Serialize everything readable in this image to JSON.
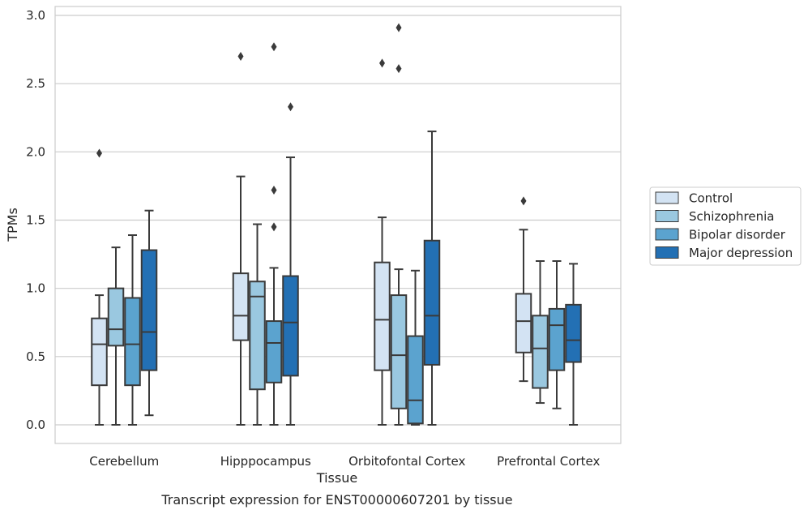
{
  "chart_data": {
    "type": "box",
    "caption": "Transcript expression for ENST00000607201 by tissue",
    "xlabel": "Tissue",
    "ylabel": "TPMs",
    "ylim": [
      -0.14,
      3.05
    ],
    "yticks": [
      "0.0",
      "0.5",
      "1.0",
      "1.5",
      "2.0",
      "2.5",
      "3.0"
    ],
    "grid": "horizontal",
    "legend_position": "right",
    "categories": [
      "Cerebellum",
      "Hipppocampus",
      "Orbitofontal Cortex",
      "Prefrontal Cortex"
    ],
    "series": [
      {
        "name": "Control",
        "color": "#d3e3f3",
        "boxes": [
          {
            "whislo": 0.0,
            "q1": 0.29,
            "med": 0.59,
            "q3": 0.78,
            "whishi": 0.95,
            "fliers": [
              1.99
            ]
          },
          {
            "whislo": 0.0,
            "q1": 0.62,
            "med": 0.8,
            "q3": 1.11,
            "whishi": 1.82,
            "fliers": [
              2.7
            ]
          },
          {
            "whislo": 0.0,
            "q1": 0.4,
            "med": 0.77,
            "q3": 1.19,
            "whishi": 1.52,
            "fliers": [
              2.65
            ]
          },
          {
            "whislo": 0.32,
            "q1": 0.53,
            "med": 0.76,
            "q3": 0.96,
            "whishi": 1.43,
            "fliers": [
              1.64
            ]
          }
        ]
      },
      {
        "name": "Schizophrenia",
        "color": "#9ac8e0",
        "boxes": [
          {
            "whislo": 0.0,
            "q1": 0.58,
            "med": 0.7,
            "q3": 1.0,
            "whishi": 1.3,
            "fliers": []
          },
          {
            "whislo": 0.0,
            "q1": 0.26,
            "med": 0.94,
            "q3": 1.05,
            "whishi": 1.47,
            "fliers": []
          },
          {
            "whislo": 0.0,
            "q1": 0.12,
            "med": 0.51,
            "q3": 0.95,
            "whishi": 1.14,
            "fliers": [
              2.91,
              2.61
            ]
          },
          {
            "whislo": 0.16,
            "q1": 0.27,
            "med": 0.56,
            "q3": 0.8,
            "whishi": 1.2,
            "fliers": []
          }
        ]
      },
      {
        "name": "Bipolar disorder",
        "color": "#5ba3cf",
        "boxes": [
          {
            "whislo": 0.0,
            "q1": 0.29,
            "med": 0.59,
            "q3": 0.93,
            "whishi": 1.39,
            "fliers": []
          },
          {
            "whislo": 0.0,
            "q1": 0.31,
            "med": 0.6,
            "q3": 0.76,
            "whishi": 1.15,
            "fliers": [
              2.77,
              1.72,
              1.45
            ]
          },
          {
            "whislo": 0.0,
            "q1": 0.01,
            "med": 0.18,
            "q3": 0.65,
            "whishi": 1.13,
            "fliers": []
          },
          {
            "whislo": 0.12,
            "q1": 0.4,
            "med": 0.73,
            "q3": 0.85,
            "whishi": 1.2,
            "fliers": []
          }
        ]
      },
      {
        "name": "Major depression",
        "color": "#2370b4",
        "boxes": [
          {
            "whislo": 0.07,
            "q1": 0.4,
            "med": 0.68,
            "q3": 1.28,
            "whishi": 1.57,
            "fliers": []
          },
          {
            "whislo": 0.0,
            "q1": 0.36,
            "med": 0.75,
            "q3": 1.09,
            "whishi": 1.96,
            "fliers": [
              2.33
            ]
          },
          {
            "whislo": 0.0,
            "q1": 0.44,
            "med": 0.8,
            "q3": 1.35,
            "whishi": 2.15,
            "fliers": []
          },
          {
            "whislo": 0.0,
            "q1": 0.46,
            "med": 0.62,
            "q3": 0.88,
            "whishi": 1.18,
            "fliers": []
          }
        ]
      }
    ]
  }
}
